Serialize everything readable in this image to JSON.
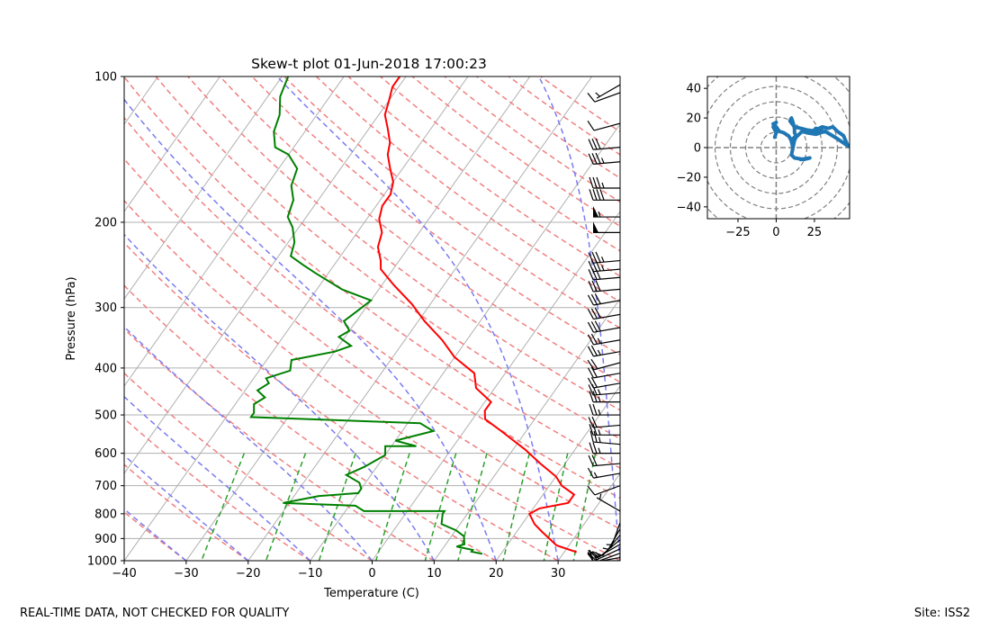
{
  "footer": {
    "note": "REAL-TIME DATA, NOT CHECKED FOR QUALITY",
    "site": "Site: ISS2"
  },
  "colors": {
    "temperature": "#ff0000",
    "dewpoint": "#008000",
    "dry_adiabat": "#f08080",
    "moist_adiabat": "#7b7bf0",
    "mixing_ratio": "#2ca02c",
    "isotherm": "#b0b0b0",
    "hodograph": "#1f77b4",
    "wind_barb": "#000000"
  },
  "chart_data": [
    {
      "type": "line",
      "title": "Skew-t plot 01-Jun-2018 17:00:23",
      "xlabel": "Temperature (C)",
      "ylabel": "Pressure (hPa)",
      "xlim": [
        -40,
        40
      ],
      "ylim": [
        1000,
        100
      ],
      "yscale": "log",
      "x_ticks": [
        "−40",
        "−30",
        "−20",
        "−10",
        "0",
        "10",
        "20",
        "30"
      ],
      "y_ticks": [
        "100",
        "200",
        "300",
        "400",
        "500",
        "600",
        "700",
        "800",
        "900",
        "1000"
      ],
      "grid": true,
      "series": [
        {
          "role": "temperature",
          "points": [
            [
              32,
              960
            ],
            [
              28,
              930
            ],
            [
              24,
              870
            ],
            [
              22,
              840
            ],
            [
              20,
              800
            ],
            [
              21,
              780
            ],
            [
              25,
              760
            ],
            [
              25,
              730
            ],
            [
              22,
              700
            ],
            [
              20,
              670
            ],
            [
              16,
              630
            ],
            [
              12,
              590
            ],
            [
              6,
              540
            ],
            [
              2,
              510
            ],
            [
              1,
              490
            ],
            [
              1,
              470
            ],
            [
              -3,
              440
            ],
            [
              -5,
              410
            ],
            [
              -10,
              380
            ],
            [
              -14,
              350
            ],
            [
              -19,
              320
            ],
            [
              -23,
              295
            ],
            [
              -28,
              270
            ],
            [
              -32,
              250
            ],
            [
              -33,
              240
            ],
            [
              -35,
              225
            ],
            [
              -36,
              210
            ],
            [
              -38,
              197
            ],
            [
              -39,
              185
            ],
            [
              -39,
              175
            ],
            [
              -40,
              165
            ],
            [
              -42,
              155
            ],
            [
              -44,
              145
            ],
            [
              -45,
              137
            ],
            [
              -47,
              128
            ],
            [
              -49,
              120
            ],
            [
              -50,
              112
            ],
            [
              -51,
              105
            ],
            [
              -51,
              100
            ]
          ]
        },
        {
          "role": "dewpoint",
          "points": [
            [
              17,
              968
            ],
            [
              15,
              958
            ],
            [
              15,
              950
            ],
            [
              12,
              935
            ],
            [
              13,
              925
            ],
            [
              12,
              890
            ],
            [
              10,
              865
            ],
            [
              7,
              840
            ],
            [
              6,
              800
            ],
            [
              6,
              790
            ],
            [
              -7,
              790
            ],
            [
              -9,
              770
            ],
            [
              -21,
              760
            ],
            [
              -16,
              735
            ],
            [
              -10,
              725
            ],
            [
              -10,
              710
            ],
            [
              -11,
              690
            ],
            [
              -14,
              665
            ],
            [
              -12,
              640
            ],
            [
              -10,
              605
            ],
            [
              -11,
              580
            ],
            [
              -6,
              580
            ],
            [
              -10,
              565
            ],
            [
              -5,
              540
            ],
            [
              -8,
              520
            ],
            [
              -36,
              505
            ],
            [
              -36,
              495
            ],
            [
              -37,
              475
            ],
            [
              -36,
              460
            ],
            [
              -38,
              445
            ],
            [
              -37,
              430
            ],
            [
              -38,
              420
            ],
            [
              -35,
              405
            ],
            [
              -36,
              385
            ],
            [
              -30,
              370
            ],
            [
              -28,
              360
            ],
            [
              -31,
              345
            ],
            [
              -30,
              335
            ],
            [
              -32,
              320
            ],
            [
              -31,
              305
            ],
            [
              -30,
              290
            ],
            [
              -36,
              275
            ],
            [
              -42,
              255
            ],
            [
              -45,
              245
            ],
            [
              -48,
              235
            ],
            [
              -49,
              220
            ],
            [
              -51,
              205
            ],
            [
              -53,
              195
            ],
            [
              -54,
              180
            ],
            [
              -56,
              168
            ],
            [
              -57,
              155
            ],
            [
              -60,
              145
            ],
            [
              -63,
              140
            ],
            [
              -65,
              130
            ],
            [
              -66,
              120
            ],
            [
              -68,
              110
            ],
            [
              -69,
              100
            ]
          ]
        }
      ],
      "wind_barbs": [
        {
          "p": 1000,
          "speed_kt": 10,
          "dir": 270
        },
        {
          "p": 985,
          "speed_kt": 10,
          "dir": 260
        },
        {
          "p": 965,
          "speed_kt": 15,
          "dir": 250
        },
        {
          "p": 945,
          "speed_kt": 15,
          "dir": 245
        },
        {
          "p": 925,
          "speed_kt": 15,
          "dir": 240
        },
        {
          "p": 905,
          "speed_kt": 10,
          "dir": 230
        },
        {
          "p": 885,
          "speed_kt": 10,
          "dir": 220
        },
        {
          "p": 860,
          "speed_kt": 5,
          "dir": 210
        },
        {
          "p": 835,
          "speed_kt": 5,
          "dir": 200
        },
        {
          "p": 790,
          "speed_kt": 5,
          "dir": 300
        },
        {
          "p": 700,
          "speed_kt": 10,
          "dir": 250
        },
        {
          "p": 660,
          "speed_kt": 15,
          "dir": 260
        },
        {
          "p": 630,
          "speed_kt": 20,
          "dir": 265
        },
        {
          "p": 600,
          "speed_kt": 25,
          "dir": 270
        },
        {
          "p": 575,
          "speed_kt": 25,
          "dir": 275
        },
        {
          "p": 550,
          "speed_kt": 25,
          "dir": 270
        },
        {
          "p": 525,
          "speed_kt": 20,
          "dir": 265
        },
        {
          "p": 500,
          "speed_kt": 25,
          "dir": 270
        },
        {
          "p": 470,
          "speed_kt": 25,
          "dir": 270
        },
        {
          "p": 450,
          "speed_kt": 25,
          "dir": 265
        },
        {
          "p": 430,
          "speed_kt": 20,
          "dir": 260
        },
        {
          "p": 410,
          "speed_kt": 20,
          "dir": 260
        },
        {
          "p": 390,
          "speed_kt": 20,
          "dir": 255
        },
        {
          "p": 370,
          "speed_kt": 25,
          "dir": 260
        },
        {
          "p": 350,
          "speed_kt": 25,
          "dir": 260
        },
        {
          "p": 330,
          "speed_kt": 30,
          "dir": 260
        },
        {
          "p": 310,
          "speed_kt": 30,
          "dir": 260
        },
        {
          "p": 290,
          "speed_kt": 30,
          "dir": 260
        },
        {
          "p": 275,
          "speed_kt": 30,
          "dir": 265
        },
        {
          "p": 260,
          "speed_kt": 30,
          "dir": 265
        },
        {
          "p": 250,
          "speed_kt": 35,
          "dir": 265
        },
        {
          "p": 240,
          "speed_kt": 35,
          "dir": 265
        },
        {
          "p": 210,
          "speed_kt": 50,
          "dir": 270
        },
        {
          "p": 195,
          "speed_kt": 55,
          "dir": 270
        },
        {
          "p": 180,
          "speed_kt": 40,
          "dir": 270
        },
        {
          "p": 170,
          "speed_kt": 35,
          "dir": 270
        },
        {
          "p": 150,
          "speed_kt": 35,
          "dir": 265
        },
        {
          "p": 140,
          "speed_kt": 30,
          "dir": 265
        },
        {
          "p": 125,
          "speed_kt": 10,
          "dir": 255
        },
        {
          "p": 108,
          "speed_kt": 10,
          "dir": 250
        },
        {
          "p": 104,
          "speed_kt": 5,
          "dir": 240
        }
      ]
    },
    {
      "type": "line",
      "title": "",
      "xlim": [
        -45,
        48
      ],
      "ylim": [
        -48,
        48
      ],
      "x_ticks": [
        "−25",
        "0",
        "25"
      ],
      "y_ticks": [
        "40",
        "20",
        "0",
        "−20",
        "−40"
      ],
      "ring_radii": [
        10,
        20,
        30,
        40,
        50,
        60
      ],
      "series": [
        {
          "role": "hodograph",
          "points": [
            [
              16,
              -8
            ],
            [
              22,
              -7
            ],
            [
              18,
              -8
            ],
            [
              12,
              -7
            ],
            [
              10,
              -5
            ],
            [
              11,
              0
            ],
            [
              10,
              4
            ],
            [
              11,
              6
            ],
            [
              13,
              8
            ],
            [
              12,
              10
            ],
            [
              12,
              13
            ],
            [
              11,
              17
            ],
            [
              10,
              20
            ],
            [
              9,
              18
            ],
            [
              12,
              14
            ],
            [
              16,
              13
            ],
            [
              20,
              12
            ],
            [
              26,
              11
            ],
            [
              30,
              13
            ],
            [
              28,
              10
            ],
            [
              26,
              13
            ],
            [
              24,
              11
            ],
            [
              30,
              14
            ],
            [
              34,
              13
            ],
            [
              37,
              14
            ],
            [
              38,
              13
            ],
            [
              40,
              11
            ],
            [
              44,
              8
            ],
            [
              47,
              1
            ],
            [
              40,
              6
            ],
            [
              32,
              11
            ],
            [
              26,
              9
            ],
            [
              20,
              10
            ],
            [
              17,
              11
            ],
            [
              15,
              9
            ],
            [
              13,
              7
            ],
            [
              12,
              5
            ],
            [
              11,
              0
            ],
            [
              10,
              5
            ],
            [
              8,
              8
            ],
            [
              5,
              10
            ],
            [
              2,
              11
            ],
            [
              0,
              14
            ],
            [
              -2,
              16
            ],
            [
              0,
              17
            ],
            [
              -2,
              14
            ],
            [
              0,
              10
            ],
            [
              -1,
              7
            ]
          ]
        }
      ]
    }
  ]
}
